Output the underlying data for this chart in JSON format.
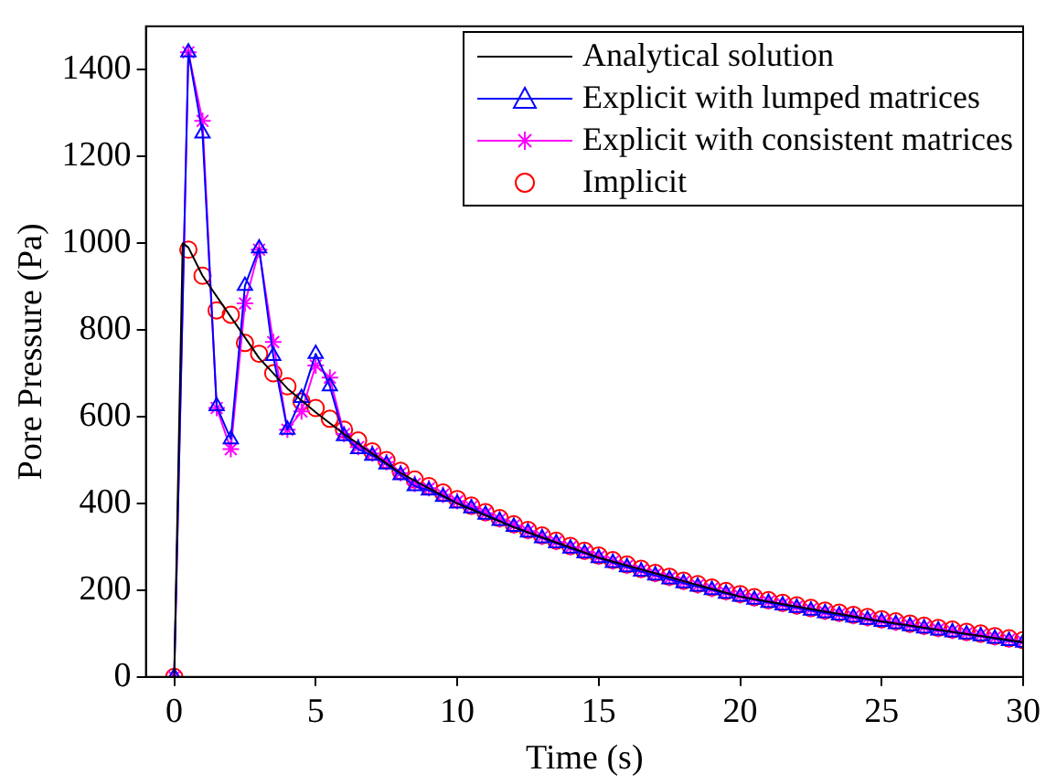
{
  "chart_data": {
    "type": "line",
    "xlabel": "Time (s)",
    "ylabel": "Pore Pressure (Pa)",
    "xlim": [
      -1,
      30
    ],
    "xticks": [
      0,
      5,
      10,
      15,
      20,
      25,
      30
    ],
    "ylim": [
      0,
      1500
    ],
    "yticks": [
      0,
      200,
      400,
      600,
      800,
      1000,
      1200,
      1400
    ],
    "grid": false,
    "legend": "top right",
    "x": [
      0,
      0.5,
      1,
      1.5,
      2,
      2.5,
      3,
      3.5,
      4,
      4.5,
      5,
      5.5,
      6,
      6.5,
      7,
      7.5,
      8,
      8.5,
      9,
      9.5,
      10,
      10.5,
      11,
      11.5,
      12,
      12.5,
      13,
      13.5,
      14,
      14.5,
      15,
      15.5,
      16,
      16.5,
      17,
      17.5,
      18,
      18.5,
      19,
      19.5,
      20,
      20.5,
      21,
      21.5,
      22,
      22.5,
      23,
      23.5,
      24,
      24.5,
      25,
      25.5,
      26,
      26.5,
      27,
      27.5,
      28,
      28.5,
      29,
      29.5,
      30
    ],
    "series": [
      {
        "name": "Analytical solution",
        "type": "line",
        "color": "#000000",
        "marker": "none",
        "x": [
          0,
          0.3,
          0.5,
          1,
          2,
          3,
          4,
          5,
          6,
          7,
          8,
          9,
          10,
          12,
          15,
          20,
          25,
          30
        ],
        "values": [
          0,
          1000,
          990,
          925,
          830,
          735,
          665,
          610,
          560,
          515,
          470,
          435,
          400,
          345,
          275,
          185,
          128,
          80
        ]
      },
      {
        "name": "Explicit with lumped matrices",
        "type": "line",
        "color": "#0000ff",
        "marker": "triangle",
        "values": [
          0,
          1440,
          1253,
          624,
          548,
          902,
          988,
          740,
          570,
          643,
          745,
          670,
          555,
          525,
          510,
          490,
          465,
          440,
          430,
          415,
          400,
          389,
          374,
          360,
          346,
          333,
          320,
          308,
          296,
          285,
          274,
          263,
          253,
          243,
          234,
          225,
          216,
          208,
          200,
          192,
          185,
          178,
          171,
          165,
          159,
          153,
          147,
          142,
          137,
          132,
          127,
          122,
          117,
          112,
          107,
          103,
          98,
          94,
          88,
          83,
          79
        ]
      },
      {
        "name": "Explicit with consistent matrices",
        "type": "line",
        "color": "#ff00ff",
        "marker": "cross",
        "values": [
          0,
          1440,
          1282,
          620,
          525,
          861,
          985,
          772,
          570,
          612,
          718,
          690,
          560,
          530,
          515,
          495,
          470,
          445,
          435,
          420,
          405,
          392,
          377,
          363,
          349,
          336,
          323,
          311,
          299,
          288,
          277,
          266,
          256,
          246,
          237,
          228,
          219,
          211,
          203,
          195,
          188,
          181,
          174,
          168,
          162,
          156,
          150,
          145,
          140,
          135,
          130,
          125,
          120,
          115,
          110,
          106,
          101,
          97,
          91,
          86,
          82
        ]
      },
      {
        "name": "Implicit",
        "type": "scatter",
        "color": "#ff0000",
        "marker": "circle",
        "values": [
          0,
          985,
          925,
          845,
          835,
          770,
          745,
          700,
          670,
          635,
          620,
          595,
          570,
          545,
          520,
          500,
          475,
          455,
          440,
          425,
          410,
          395,
          380,
          366,
          352,
          339,
          326,
          314,
          302,
          291,
          280,
          269,
          259,
          249,
          240,
          231,
          222,
          214,
          206,
          198,
          191,
          184,
          177,
          171,
          165,
          159,
          153,
          148,
          143,
          138,
          133,
          128,
          123,
          118,
          113,
          109,
          104,
          100,
          94,
          89,
          85
        ]
      }
    ]
  }
}
